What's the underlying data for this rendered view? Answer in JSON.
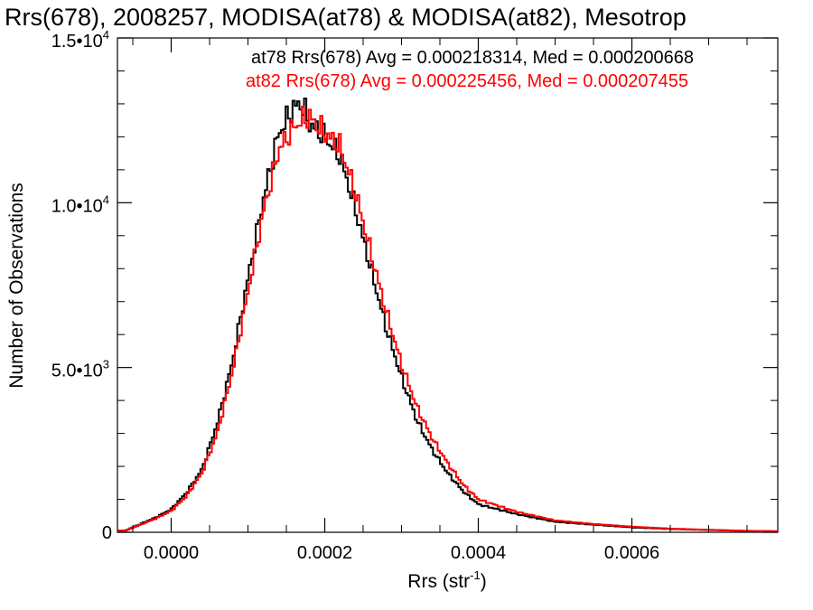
{
  "chart_data": {
    "type": "histogram",
    "title": "Rrs(678), 2008257, MODISA(at78) & MODISA(at82), Mesotrop",
    "xlabel": "Rrs (str",
    "xlabel_sup": "-1",
    "xlabel_suffix": ")",
    "ylabel": "Number of Observations",
    "xlim": [
      -7e-05,
      0.00079
    ],
    "ylim": [
      0,
      15000
    ],
    "xticks": [
      {
        "value": 0.0,
        "label": "0.0000"
      },
      {
        "value": 0.0002,
        "label": "0.0002"
      },
      {
        "value": 0.0004,
        "label": "0.0004"
      },
      {
        "value": 0.0006,
        "label": "0.0006"
      }
    ],
    "yticks": [
      {
        "value": 0,
        "label": "0",
        "exp": ""
      },
      {
        "value": 5000,
        "label": "5.0•10",
        "exp": "3"
      },
      {
        "value": 10000,
        "label": "1.0•10",
        "exp": "4"
      },
      {
        "value": 15000,
        "label": "1.5•10",
        "exp": "4"
      }
    ],
    "grid": false,
    "legend_position": "top-right",
    "series": [
      {
        "name": "at78",
        "color": "#000000",
        "annotation": "at78 Rrs(678) Avg = 0.000218314, Med = 0.000200668",
        "x": [
          -6e-05,
          -4e-05,
          -2e-05,
          0.0,
          2e-05,
          4e-05,
          6e-05,
          8e-05,
          0.0001,
          0.00012,
          0.00014,
          0.00016,
          0.00017,
          0.00018,
          0.0002,
          0.00022,
          0.00024,
          0.00026,
          0.00028,
          0.0003,
          0.00032,
          0.00034,
          0.00036,
          0.00038,
          0.0004,
          0.00045,
          0.0005,
          0.00055,
          0.0006,
          0.00065,
          0.0007,
          0.00075,
          0.00079
        ],
        "values": [
          50,
          250,
          450,
          700,
          1200,
          1900,
          3300,
          5200,
          7700,
          10100,
          12100,
          12900,
          13000,
          12400,
          12000,
          11400,
          9800,
          8000,
          6200,
          4700,
          3400,
          2500,
          1800,
          1250,
          850,
          550,
          320,
          230,
          150,
          100,
          70,
          40,
          30
        ]
      },
      {
        "name": "at82",
        "color": "#ff0000",
        "annotation": "at82 Rrs(678) Avg = 0.000225456, Med = 0.000207455",
        "x": [
          -6e-05,
          -4e-05,
          -2e-05,
          0.0,
          2e-05,
          4e-05,
          6e-05,
          8e-05,
          0.0001,
          0.00012,
          0.00014,
          0.00016,
          0.00017,
          0.00018,
          0.0002,
          0.00022,
          0.00024,
          0.00026,
          0.00028,
          0.0003,
          0.00032,
          0.00034,
          0.00036,
          0.00038,
          0.0004,
          0.00045,
          0.0005,
          0.00055,
          0.0006,
          0.00065,
          0.0007,
          0.00075,
          0.00079
        ],
        "values": [
          45,
          230,
          420,
          650,
          1100,
          1800,
          3000,
          4900,
          7300,
          9700,
          11600,
          12300,
          12500,
          12600,
          12100,
          11700,
          10300,
          8500,
          6700,
          5100,
          3800,
          2850,
          2100,
          1450,
          1000,
          620,
          360,
          250,
          170,
          110,
          75,
          45,
          30
        ]
      }
    ]
  }
}
